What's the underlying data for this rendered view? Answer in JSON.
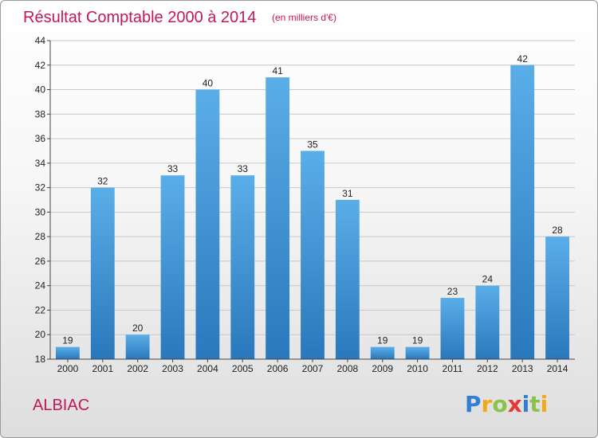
{
  "chart_data": {
    "type": "bar",
    "title": "Résultat Comptable 2000 à 2014",
    "subtitle": "(en milliers d'€)",
    "categories": [
      "2000",
      "2001",
      "2002",
      "2003",
      "2004",
      "2005",
      "2006",
      "2007",
      "2008",
      "2009",
      "2010",
      "2011",
      "2012",
      "2013",
      "2014"
    ],
    "values": [
      19,
      32,
      20,
      33,
      40,
      33,
      41,
      35,
      31,
      19,
      19,
      23,
      24,
      42,
      28
    ],
    "ylim": [
      18,
      44
    ],
    "yticks": [
      18,
      20,
      22,
      24,
      26,
      28,
      30,
      32,
      34,
      36,
      38,
      40,
      42,
      44
    ],
    "xlabel": "",
    "ylabel": "",
    "grid": true,
    "bar_color": "#4a9fde"
  },
  "commune": "ALBIAC",
  "logo": {
    "letters": [
      "P",
      "r",
      "o",
      "x",
      "i",
      "t",
      "i"
    ],
    "colors": [
      "#2f7fd6",
      "#f2a81d",
      "#8bc34a",
      "#e53935",
      "#2f7fd6",
      "#8bc34a",
      "#f2a81d"
    ]
  }
}
